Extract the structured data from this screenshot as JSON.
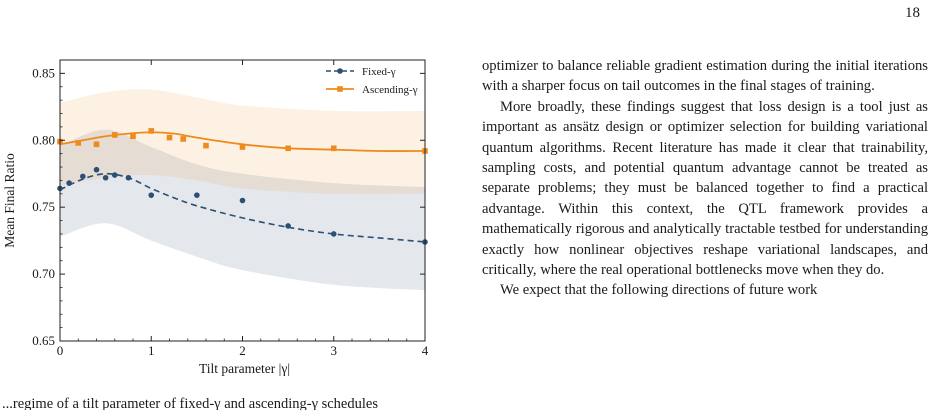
{
  "page": {
    "number": "18"
  },
  "figure": {
    "chart_data": {
      "type": "line",
      "xlabel": "Tilt parameter |γ|",
      "ylabel": "Mean Final Ratio",
      "xlim": [
        0,
        4
      ],
      "ylim": [
        0.65,
        0.86
      ],
      "xticks": [
        "0",
        "1",
        "2",
        "3",
        "4"
      ],
      "yticks": [
        "0.65",
        "0.70",
        "0.75",
        "0.80",
        "0.85"
      ],
      "legend": {
        "placement": "top-right",
        "entries": [
          "Fixed-γ",
          "Ascending-γ"
        ]
      },
      "grid": false,
      "series": [
        {
          "name": "Fixed-γ",
          "color": "#2c4f73",
          "marker": "circle",
          "line_style": "dashed",
          "points": [
            {
              "x": 0.0,
              "y": 0.764
            },
            {
              "x": 0.1,
              "y": 0.768
            },
            {
              "x": 0.25,
              "y": 0.773
            },
            {
              "x": 0.4,
              "y": 0.778
            },
            {
              "x": 0.5,
              "y": 0.772
            },
            {
              "x": 0.6,
              "y": 0.774
            },
            {
              "x": 0.75,
              "y": 0.772
            },
            {
              "x": 1.0,
              "y": 0.759
            },
            {
              "x": 1.5,
              "y": 0.759
            },
            {
              "x": 2.0,
              "y": 0.755
            },
            {
              "x": 2.5,
              "y": 0.736
            },
            {
              "x": 3.0,
              "y": 0.73
            },
            {
              "x": 4.0,
              "y": 0.724
            }
          ],
          "fit": [
            {
              "x": 0.0,
              "y": 0.763
            },
            {
              "x": 0.25,
              "y": 0.771
            },
            {
              "x": 0.5,
              "y": 0.775
            },
            {
              "x": 0.75,
              "y": 0.772
            },
            {
              "x": 1.0,
              "y": 0.764
            },
            {
              "x": 1.25,
              "y": 0.757
            },
            {
              "x": 1.5,
              "y": 0.751
            },
            {
              "x": 2.0,
              "y": 0.742
            },
            {
              "x": 2.5,
              "y": 0.735
            },
            {
              "x": 3.0,
              "y": 0.73
            },
            {
              "x": 3.5,
              "y": 0.727
            },
            {
              "x": 4.0,
              "y": 0.724
            }
          ],
          "band_upper": [
            {
              "x": 0.0,
              "y": 0.796
            },
            {
              "x": 0.5,
              "y": 0.808
            },
            {
              "x": 1.0,
              "y": 0.795
            },
            {
              "x": 1.5,
              "y": 0.782
            },
            {
              "x": 2.0,
              "y": 0.775
            },
            {
              "x": 3.0,
              "y": 0.768
            },
            {
              "x": 4.0,
              "y": 0.765
            }
          ],
          "band_lower": [
            {
              "x": 0.0,
              "y": 0.728
            },
            {
              "x": 0.5,
              "y": 0.738
            },
            {
              "x": 1.0,
              "y": 0.725
            },
            {
              "x": 1.5,
              "y": 0.713
            },
            {
              "x": 2.0,
              "y": 0.703
            },
            {
              "x": 3.0,
              "y": 0.692
            },
            {
              "x": 4.0,
              "y": 0.688
            }
          ]
        },
        {
          "name": "Ascending-γ",
          "color": "#ee8a1e",
          "marker": "square",
          "line_style": "solid",
          "points": [
            {
              "x": 0.0,
              "y": 0.799
            },
            {
              "x": 0.2,
              "y": 0.798
            },
            {
              "x": 0.4,
              "y": 0.797
            },
            {
              "x": 0.6,
              "y": 0.804
            },
            {
              "x": 0.8,
              "y": 0.803
            },
            {
              "x": 1.0,
              "y": 0.807
            },
            {
              "x": 1.2,
              "y": 0.802
            },
            {
              "x": 1.35,
              "y": 0.801
            },
            {
              "x": 1.6,
              "y": 0.796
            },
            {
              "x": 2.0,
              "y": 0.795
            },
            {
              "x": 2.5,
              "y": 0.794
            },
            {
              "x": 3.0,
              "y": 0.794
            },
            {
              "x": 4.0,
              "y": 0.792
            }
          ],
          "fit": [
            {
              "x": 0.0,
              "y": 0.797
            },
            {
              "x": 0.25,
              "y": 0.8
            },
            {
              "x": 0.5,
              "y": 0.803
            },
            {
              "x": 0.75,
              "y": 0.805
            },
            {
              "x": 1.0,
              "y": 0.806
            },
            {
              "x": 1.25,
              "y": 0.805
            },
            {
              "x": 1.5,
              "y": 0.802
            },
            {
              "x": 2.0,
              "y": 0.797
            },
            {
              "x": 2.5,
              "y": 0.794
            },
            {
              "x": 3.0,
              "y": 0.793
            },
            {
              "x": 3.5,
              "y": 0.792
            },
            {
              "x": 4.0,
              "y": 0.792
            }
          ],
          "band_upper": [
            {
              "x": 0.0,
              "y": 0.828
            },
            {
              "x": 0.5,
              "y": 0.836
            },
            {
              "x": 1.0,
              "y": 0.838
            },
            {
              "x": 1.5,
              "y": 0.832
            },
            {
              "x": 2.0,
              "y": 0.826
            },
            {
              "x": 3.0,
              "y": 0.822
            },
            {
              "x": 4.0,
              "y": 0.822
            }
          ],
          "band_lower": [
            {
              "x": 0.0,
              "y": 0.766
            },
            {
              "x": 0.5,
              "y": 0.772
            },
            {
              "x": 1.0,
              "y": 0.774
            },
            {
              "x": 1.5,
              "y": 0.77
            },
            {
              "x": 2.0,
              "y": 0.764
            },
            {
              "x": 3.0,
              "y": 0.76
            },
            {
              "x": 4.0,
              "y": 0.76
            }
          ]
        }
      ]
    }
  },
  "body": {
    "p1": "optimizer to balance reliable gradient estimation during the initial iterations with a sharper focus on tail outcomes in the final stages of training.",
    "p2": "More broadly, these findings suggest that loss design is a tool just as important as ansätz design or optimizer selection for building variational quantum algorithms. Recent literature has made it clear that trainability, sampling costs, and potential quantum advantage cannot be treated as separate problems; they must be balanced together to find a practical advantage. Within this context, the QTL framework provides a mathematically rigorous and analytically tractable testbed for understanding exactly how nonlinear objectives reshape variational landscapes, and critically, where the real operational bottlenecks move when they do.",
    "p3": "We expect that the following directions of future work"
  },
  "caption": {
    "fragment": "...regime of a tilt parameter of fixed-γ and ascending-γ schedules"
  }
}
